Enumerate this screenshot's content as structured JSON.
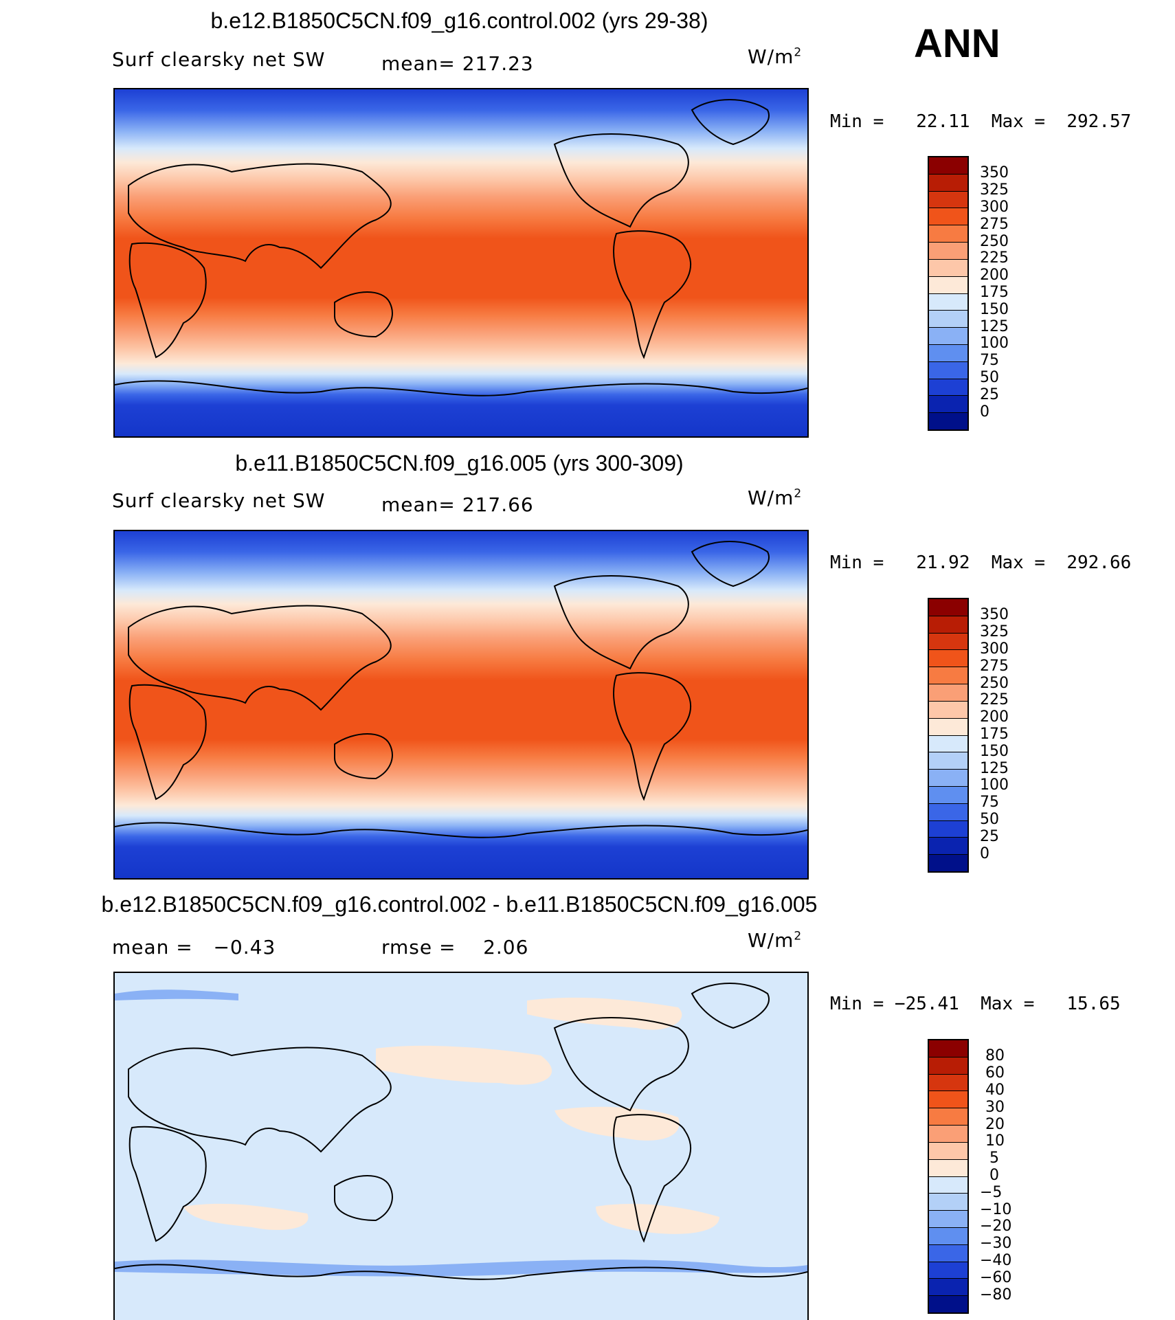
{
  "season": "ANN",
  "panels": [
    {
      "title": "b.e12.B1850C5CN.f09_g16.control.002 (yrs 29-38)",
      "left_label": "Surf clearsky net SW",
      "mean_label": "mean= 217.23",
      "units_base": "W/m",
      "units_exp": "2",
      "minmax_label": "Min =   22.11  Max =  292.57",
      "colorbar_labels": [
        "350",
        "325",
        "300",
        "275",
        "250",
        "225",
        "200",
        "175",
        "150",
        "125",
        "100",
        "75",
        "50",
        "25",
        "0"
      ]
    },
    {
      "title": "b.e11.B1850C5CN.f09_g16.005 (yrs 300-309)",
      "left_label": "Surf clearsky net SW",
      "mean_label": "mean= 217.66",
      "units_base": "W/m",
      "units_exp": "2",
      "minmax_label": "Min =   21.92  Max =  292.66",
      "colorbar_labels": [
        "350",
        "325",
        "300",
        "275",
        "250",
        "225",
        "200",
        "175",
        "150",
        "125",
        "100",
        "75",
        "50",
        "25",
        "0"
      ]
    },
    {
      "title": "b.e12.B1850C5CN.f09_g16.control.002 - b.e11.B1850C5CN.f09_g16.005",
      "left_label": "mean =   −0.43",
      "mean_label": "rmse =    2.06",
      "units_base": "W/m",
      "units_exp": "2",
      "minmax_label": "Min = −25.41  Max =   15.65",
      "colorbar_labels": [
        "80",
        "60",
        "40",
        "30",
        "20",
        "10",
        "5",
        "0",
        "−5",
        "−10",
        "−20",
        "−30",
        "−40",
        "−60",
        "−80"
      ]
    }
  ],
  "colors": {
    "colorbar": [
      "#8b0000",
      "#b81d05",
      "#d6360f",
      "#f0541a",
      "#f77b42",
      "#fa9f76",
      "#fdc7a9",
      "#fde9d8",
      "#d7e9fb",
      "#b3d0f7",
      "#8ab1f5",
      "#5f8ff0",
      "#3a66e7",
      "#1d40d4",
      "#0a23b0",
      "#00108a"
    ],
    "sea_ice_dark": "#1436c9",
    "tropical_ocean": "#f0541a"
  }
}
